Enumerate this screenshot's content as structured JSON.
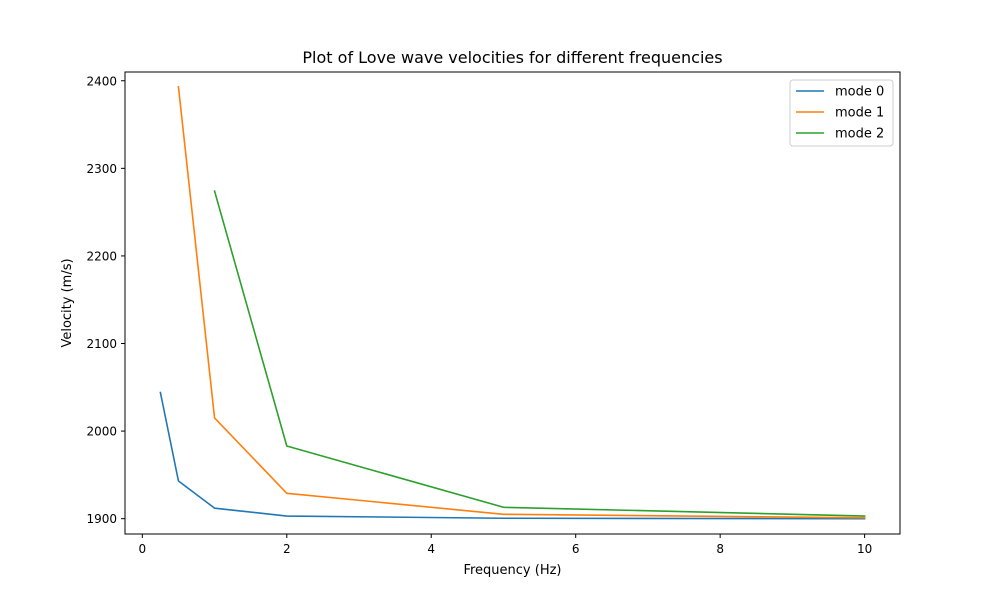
{
  "chart_data": {
    "type": "line",
    "title": "Plot of Love wave velocities for different frequencies",
    "xlabel": "Frequency (Hz)",
    "ylabel": "Velocity (m/s)",
    "xlim": [
      -0.24,
      10.49
    ],
    "ylim": [
      1882.5,
      2410
    ],
    "xticks": [
      0,
      2,
      4,
      6,
      8,
      10
    ],
    "yticks": [
      1900,
      2000,
      2100,
      2200,
      2300,
      2400
    ],
    "grid": false,
    "legend_position": "top-right",
    "series": [
      {
        "name": "mode 0",
        "color": "#1f77b4",
        "x": [
          0.25,
          0.5,
          1,
          2,
          5,
          10
        ],
        "y": [
          2044,
          1943,
          1912,
          1903,
          1900.5,
          1900
        ]
      },
      {
        "name": "mode 1",
        "color": "#ff7f0e",
        "x": [
          0.5,
          1,
          2,
          5,
          10
        ],
        "y": [
          2393,
          2015,
          1929,
          1905,
          1901
        ]
      },
      {
        "name": "mode 2",
        "color": "#2ca02c",
        "x": [
          1,
          2,
          5,
          10
        ],
        "y": [
          2274,
          1983,
          1913,
          1903
        ]
      }
    ]
  }
}
